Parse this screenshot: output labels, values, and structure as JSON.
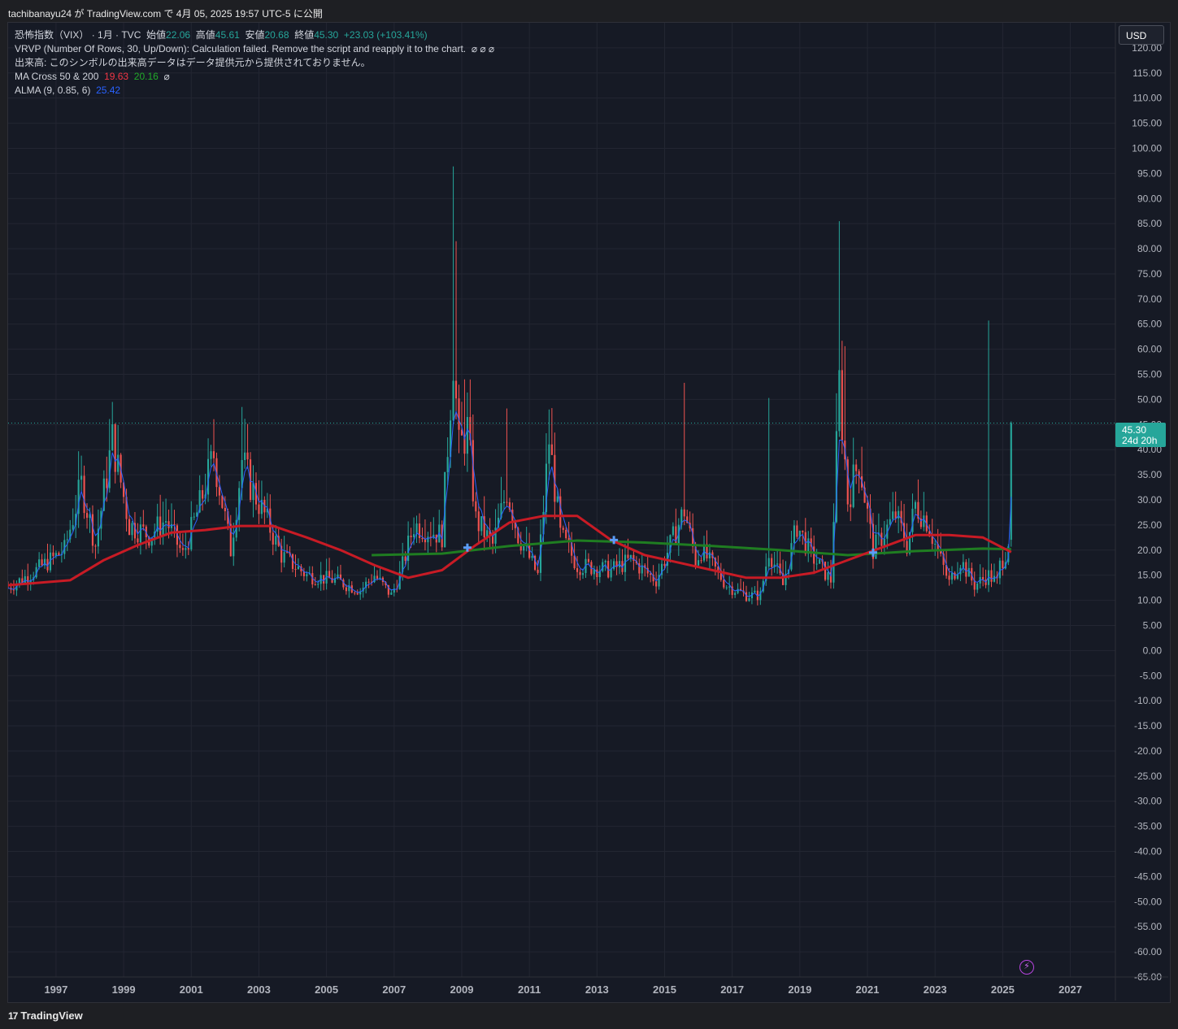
{
  "header": {
    "published": "tachibanayu24 が TradingView.com で 4月 05, 2025 19:57 UTC-5 に公開"
  },
  "legend": {
    "symbol": "恐怖指数（VIX）",
    "interval_source": "· 1月 · TVC",
    "open_label": "始値",
    "open": "22.06",
    "high_label": "高値",
    "high": "45.61",
    "low_label": "安値",
    "low": "20.68",
    "close_label": "終値",
    "close": "45.30",
    "change": "+23.03 (+103.41%)",
    "vrvp": "VRVP (Number Of Rows, 30, Up/Down): Calculation failed. Remove the script and reapply it to the chart.",
    "vrvp_icons": "⌀ ⌀ ⌀",
    "volume_msg": "出来高: このシンボルの出来高データはデータ提供元から提供されておりません。",
    "ma_label": "MA Cross 50 & 200",
    "ma50": "19.63",
    "ma200": "20.16",
    "ma_icon": "⌀",
    "alma_label": "ALMA (9, 0.85, 6)",
    "alma": "25.42"
  },
  "currency": "USD",
  "last_price_tag": {
    "price": "45.30",
    "countdown": "24d 20h"
  },
  "footer": {
    "brand": "TradingView",
    "logo": "17"
  },
  "colors": {
    "up": "#26a69a",
    "down": "#ef5350",
    "ma50": "#c81b25",
    "ma200": "#1f7d21",
    "alma": "#2962ff",
    "bg": "#161a25",
    "grid": "#232632",
    "last_line": "#26a69a"
  },
  "chart_data": {
    "type": "candlestick",
    "title": "恐怖指数（VIX）",
    "interval": "1M",
    "ylim": [
      -65,
      125
    ],
    "y_ticks": [
      120,
      115,
      110,
      105,
      100,
      95,
      90,
      85,
      80,
      75,
      70,
      65,
      60,
      55,
      50,
      45,
      40,
      35,
      30,
      25,
      20,
      15,
      10,
      5,
      0,
      -5,
      -10,
      -15,
      -20,
      -25,
      -30,
      -35,
      -40,
      -45,
      -50,
      -55,
      -60,
      -65
    ],
    "x_ticks": [
      "1997",
      "1999",
      "2001",
      "2003",
      "2005",
      "2007",
      "2009",
      "2011",
      "2013",
      "2015",
      "2017",
      "2019",
      "2021",
      "2023",
      "2025",
      "2027"
    ],
    "xlim": [
      "1995-08",
      "2028-05"
    ],
    "last_close": 45.3,
    "grid": true,
    "close_series": [
      {
        "date": "1995-08",
        "close": 12.5
      },
      {
        "date": "1996-06",
        "close": 16.0
      },
      {
        "date": "1997-04",
        "close": 20.0
      },
      {
        "date": "1997-10",
        "close": 33.0
      },
      {
        "date": "1998-03",
        "close": 21.0
      },
      {
        "date": "1998-09",
        "close": 42.0
      },
      {
        "date": "1999-03",
        "close": 25.0
      },
      {
        "date": "1999-10",
        "close": 23.0
      },
      {
        "date": "2000-04",
        "close": 26.0
      },
      {
        "date": "2000-10",
        "close": 19.0
      },
      {
        "date": "2001-04",
        "close": 29.0
      },
      {
        "date": "2001-09",
        "close": 39.0
      },
      {
        "date": "2002-03",
        "close": 20.0
      },
      {
        "date": "2002-07",
        "close": 38.0
      },
      {
        "date": "2002-10",
        "close": 33.0
      },
      {
        "date": "2003-03",
        "close": 27.0
      },
      {
        "date": "2003-09",
        "close": 19.0
      },
      {
        "date": "2004-06",
        "close": 15.0
      },
      {
        "date": "2005-04",
        "close": 14.0
      },
      {
        "date": "2006-01",
        "close": 12.0
      },
      {
        "date": "2006-06",
        "close": 15.0
      },
      {
        "date": "2006-12",
        "close": 11.0
      },
      {
        "date": "2007-03",
        "close": 15.0
      },
      {
        "date": "2007-08",
        "close": 25.0
      },
      {
        "date": "2008-01",
        "close": 24.0
      },
      {
        "date": "2008-06",
        "close": 23.0
      },
      {
        "date": "2008-10",
        "close": 59.0
      },
      {
        "date": "2008-12",
        "close": 40.0
      },
      {
        "date": "2009-03",
        "close": 44.0
      },
      {
        "date": "2009-06",
        "close": 26.0
      },
      {
        "date": "2009-12",
        "close": 21.0
      },
      {
        "date": "2010-05",
        "close": 32.0
      },
      {
        "date": "2010-09",
        "close": 23.0
      },
      {
        "date": "2011-04",
        "close": 15.0
      },
      {
        "date": "2011-08",
        "close": 42.0
      },
      {
        "date": "2011-12",
        "close": 23.0
      },
      {
        "date": "2012-06",
        "close": 17.0
      },
      {
        "date": "2013-06",
        "close": 16.0
      },
      {
        "date": "2014-01",
        "close": 18.0
      },
      {
        "date": "2014-10",
        "close": 14.0
      },
      {
        "date": "2015-08",
        "close": 28.0
      },
      {
        "date": "2015-12",
        "close": 18.0
      },
      {
        "date": "2016-02",
        "close": 20.0
      },
      {
        "date": "2016-11",
        "close": 13.0
      },
      {
        "date": "2017-06",
        "close": 11.0
      },
      {
        "date": "2017-11",
        "close": 11.0
      },
      {
        "date": "2018-02",
        "close": 20.0
      },
      {
        "date": "2018-07",
        "close": 13.0
      },
      {
        "date": "2018-12",
        "close": 25.0
      },
      {
        "date": "2019-05",
        "close": 19.0
      },
      {
        "date": "2019-12",
        "close": 14.0
      },
      {
        "date": "2020-03",
        "close": 53.0
      },
      {
        "date": "2020-06",
        "close": 30.0
      },
      {
        "date": "2020-10",
        "close": 38.0
      },
      {
        "date": "2021-03",
        "close": 20.0
      },
      {
        "date": "2021-11",
        "close": 27.0
      },
      {
        "date": "2022-03",
        "close": 21.0
      },
      {
        "date": "2022-06",
        "close": 29.0
      },
      {
        "date": "2022-10",
        "close": 26.0
      },
      {
        "date": "2023-03",
        "close": 18.0
      },
      {
        "date": "2023-06",
        "close": 13.5
      },
      {
        "date": "2023-10",
        "close": 18.0
      },
      {
        "date": "2024-03",
        "close": 13.0
      },
      {
        "date": "2024-08",
        "close": 15.0
      },
      {
        "date": "2024-11",
        "close": 13.5
      },
      {
        "date": "2024-12",
        "close": 17.0
      },
      {
        "date": "2025-02",
        "close": 19.6
      },
      {
        "date": "2025-03",
        "close": 22.1
      },
      {
        "date": "2025-04",
        "close": 45.3
      }
    ],
    "spikes": [
      {
        "date": "1998-09",
        "high": 49.5
      },
      {
        "date": "2002-07",
        "high": 48.5
      },
      {
        "date": "2008-10",
        "high": 96.4
      },
      {
        "date": "2008-11",
        "high": 81.5
      },
      {
        "date": "2009-02",
        "high": 54.0
      },
      {
        "date": "2010-05",
        "high": 48.2
      },
      {
        "date": "2011-08",
        "high": 48.0
      },
      {
        "date": "2015-08",
        "high": 53.3
      },
      {
        "date": "2018-02",
        "high": 50.3
      },
      {
        "date": "2020-03",
        "high": 85.5
      },
      {
        "date": "2020-05",
        "high": 60.6
      },
      {
        "date": "2024-08",
        "high": 65.7
      },
      {
        "date": "2025-04",
        "high": 45.61
      }
    ],
    "series": [
      {
        "name": "MA 50",
        "points": [
          {
            "date": "1995-08",
            "value": 13.0
          },
          {
            "date": "1997-06",
            "value": 14.0
          },
          {
            "date": "1998-06",
            "value": 18.0
          },
          {
            "date": "1999-06",
            "value": 21.0
          },
          {
            "date": "2000-06",
            "value": 23.5
          },
          {
            "date": "2001-06",
            "value": 24.0
          },
          {
            "date": "2002-06",
            "value": 24.8
          },
          {
            "date": "2003-06",
            "value": 24.8
          },
          {
            "date": "2004-06",
            "value": 22.5
          },
          {
            "date": "2005-06",
            "value": 20.0
          },
          {
            "date": "2006-06",
            "value": 17.0
          },
          {
            "date": "2007-06",
            "value": 14.5
          },
          {
            "date": "2008-06",
            "value": 16.0
          },
          {
            "date": "2009-06",
            "value": 21.0
          },
          {
            "date": "2010-06",
            "value": 25.5
          },
          {
            "date": "2011-06",
            "value": 26.8
          },
          {
            "date": "2012-06",
            "value": 26.8
          },
          {
            "date": "2013-06",
            "value": 22.0
          },
          {
            "date": "2014-06",
            "value": 19.0
          },
          {
            "date": "2015-06",
            "value": 17.5
          },
          {
            "date": "2016-06",
            "value": 16.0
          },
          {
            "date": "2017-06",
            "value": 14.5
          },
          {
            "date": "2018-06",
            "value": 14.5
          },
          {
            "date": "2019-06",
            "value": 15.5
          },
          {
            "date": "2020-06",
            "value": 18.0
          },
          {
            "date": "2021-06",
            "value": 20.5
          },
          {
            "date": "2022-06",
            "value": 23.0
          },
          {
            "date": "2023-06",
            "value": 23.0
          },
          {
            "date": "2024-06",
            "value": 22.5
          },
          {
            "date": "2025-04",
            "value": 19.6
          }
        ]
      },
      {
        "name": "MA 200",
        "points": [
          {
            "date": "2006-05",
            "value": 19.0
          },
          {
            "date": "2008-06",
            "value": 19.3
          },
          {
            "date": "2010-06",
            "value": 20.8
          },
          {
            "date": "2012-06",
            "value": 21.9
          },
          {
            "date": "2014-06",
            "value": 21.5
          },
          {
            "date": "2016-06",
            "value": 20.8
          },
          {
            "date": "2018-06",
            "value": 20.0
          },
          {
            "date": "2020-06",
            "value": 19.0
          },
          {
            "date": "2022-06",
            "value": 19.8
          },
          {
            "date": "2024-06",
            "value": 20.3
          },
          {
            "date": "2025-04",
            "value": 20.16
          }
        ]
      }
    ],
    "cross_markers": [
      {
        "date": "2009-03",
        "value": 20.5
      },
      {
        "date": "2013-07",
        "value": 22.0
      },
      {
        "date": "2021-03",
        "value": 19.5
      }
    ]
  }
}
